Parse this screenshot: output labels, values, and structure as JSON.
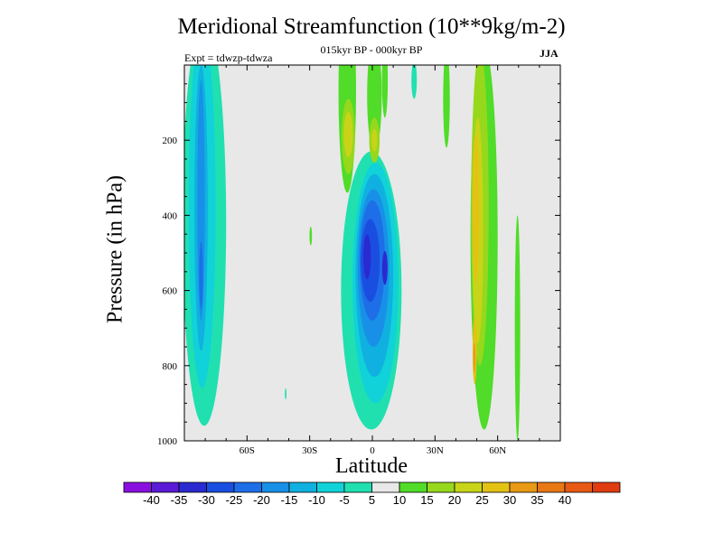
{
  "chart_data": {
    "type": "heatmap",
    "title": "Meridional Streamfunction (10**9kg/m-2)",
    "subtitle": "015kyr BP - 000kyr BP",
    "annotation_left": "Expt = tdwzp-tdwza",
    "annotation_right": "JJA",
    "xlabel": "Latitude",
    "ylabel": "Pressure (in hPa)",
    "x_axis": {
      "range": [
        -90,
        90
      ],
      "ticks": [
        -60,
        -30,
        0,
        30,
        60
      ],
      "tick_labels": [
        "60S",
        "30S",
        "0",
        "30N",
        "60N"
      ]
    },
    "y_axis": {
      "range": [
        0,
        1000
      ],
      "inverted": true,
      "ticks": [
        200,
        400,
        600,
        800,
        1000
      ],
      "tick_labels": [
        "200",
        "400",
        "600",
        "800",
        "1000"
      ]
    },
    "colorbar": {
      "levels": [
        "-40",
        "-35",
        "-30",
        "-25",
        "-20",
        "-15",
        "-10",
        "-5",
        "5",
        "10",
        "15",
        "20",
        "25",
        "30",
        "35",
        "40"
      ],
      "colors": [
        "#8a10e0",
        "#5a1ad6",
        "#2a2ad0",
        "#1a4ee0",
        "#1e6ee8",
        "#1890e8",
        "#10b0e0",
        "#10d2d8",
        "#20e0b0",
        "#e8e8e8",
        "#50dc28",
        "#96d81c",
        "#c8d418",
        "#e4c214",
        "#e89a14",
        "#e87814",
        "#e85a14",
        "#e03c10"
      ]
    },
    "features": [
      {
        "sign": "negative",
        "lat": [
          -90,
          -70
        ],
        "pressure": [
          0,
          960
        ],
        "min_level": "-25"
      },
      {
        "sign": "negative",
        "lat": [
          -15,
          15
        ],
        "pressure": [
          230,
          960
        ],
        "min_level": "-30"
      },
      {
        "sign": "positive",
        "lat": [
          -15,
          10
        ],
        "pressure": [
          0,
          250
        ],
        "max_level": "20"
      },
      {
        "sign": "positive",
        "lat": [
          45,
          62
        ],
        "pressure": [
          0,
          970
        ],
        "max_level": "25"
      },
      {
        "sign": "negative",
        "lat": [
          18,
          23
        ],
        "pressure": [
          0,
          80
        ],
        "min_level": "-5"
      },
      {
        "sign": "positive",
        "lat": [
          34,
          38
        ],
        "pressure": [
          0,
          200
        ],
        "max_level": "5"
      }
    ]
  }
}
